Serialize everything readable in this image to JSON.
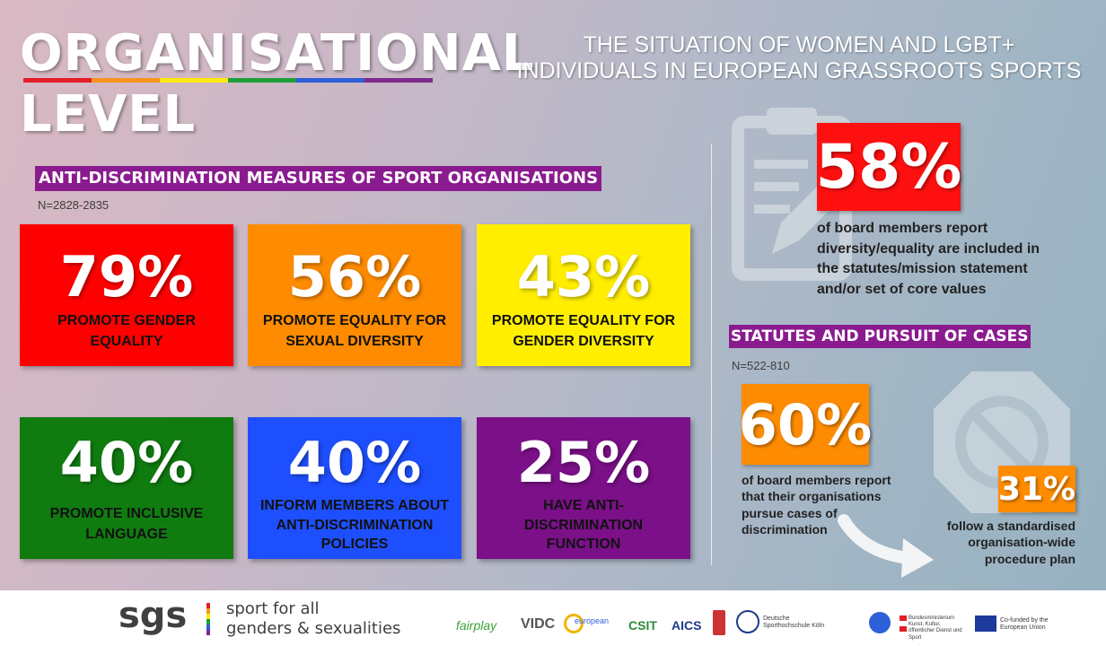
{
  "title": {
    "line1": "ORGANISATIONAL",
    "line2": "LEVEL"
  },
  "subtitle": {
    "line1": "THE SITUATION OF WOMEN AND LGBT+",
    "line2": "INDIVIDUALS IN EUROPEAN GRASSROOTS SPORTS"
  },
  "rainbow_colors": [
    "#e41e26",
    "#f7941d",
    "#fde910",
    "#1e9e3a",
    "#2d5fd8",
    "#7d2a8d"
  ],
  "measures": {
    "header": "ANTI-DISCRIMINATION MEASURES OF SPORT ORGANISATIONS",
    "n": "N=2828-2835",
    "cards": [
      {
        "pct": "79%",
        "line1": "PROMOTE GENDER",
        "line2": "EQUALITY",
        "line3": "",
        "color": "#ff0000"
      },
      {
        "pct": "56%",
        "line1": "PROMOTE EQUALITY FOR",
        "line2": "SEXUAL DIVERSITY",
        "line3": "",
        "color": "#ff8c00"
      },
      {
        "pct": "43%",
        "line1": "PROMOTE EQUALITY FOR",
        "line2": "GENDER DIVERSITY",
        "line3": "",
        "color": "#ffee00"
      },
      {
        "pct": "40%",
        "line1": "PROMOTE INCLUSIVE",
        "line2": "LANGUAGE",
        "line3": "",
        "color": "#107c10"
      },
      {
        "pct": "40%",
        "line1": "INFORM MEMBERS ABOUT",
        "line2": "ANTI-DISCRIMINATION",
        "line3": "POLICIES",
        "color": "#1e4fff"
      },
      {
        "pct": "25%",
        "line1": "HAVE ANTI-",
        "line2": "DISCRIMINATION",
        "line3": "FUNCTION",
        "color": "#7b1088"
      }
    ]
  },
  "board": {
    "pct": "58%",
    "pct_color": "#ff1010",
    "lines": [
      "of board members report",
      "diversity/equality are included in",
      "the statutes/mission statement",
      "and/or set of core values"
    ]
  },
  "statutes": {
    "header": "STATUTES AND PURSUIT OF CASES",
    "n": "N=522-810",
    "pct60": "60%",
    "pct60_color": "#ff8c00",
    "lines60": [
      "of board members report",
      "that their organisations",
      "pursue cases of",
      "discrimination"
    ],
    "pct31": "31%",
    "pct31_color": "#ff8c00",
    "lines31": [
      "follow a standardised",
      "organisation-wide",
      "procedure plan"
    ]
  },
  "footer": {
    "logo": "sgs",
    "tag_line1": "sport for all",
    "tag_line2": "genders & sexualities",
    "partners": [
      "fairplay",
      "VIDC",
      "european",
      "CSIT",
      "AICS",
      "Deutsche Sporthochschule Köln",
      "Bundesministerium Kunst, Kultur, öffentlicher Dienst und Sport",
      "Co-funded by the European Union"
    ]
  }
}
